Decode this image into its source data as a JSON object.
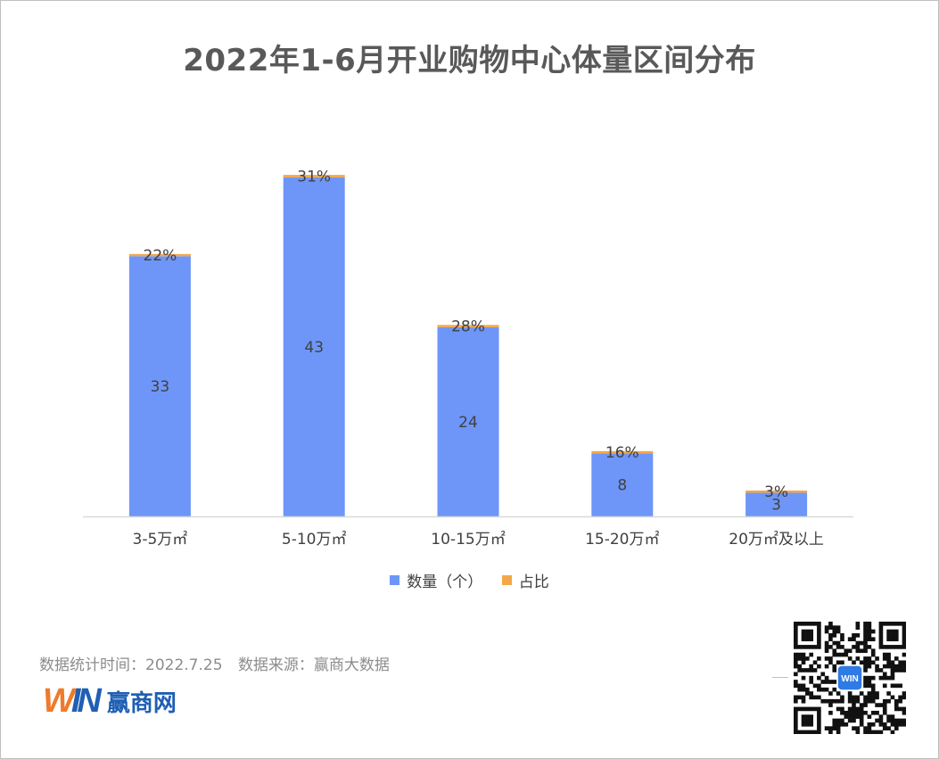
{
  "title": "2022年1-6月开业购物中心体量区间分布",
  "chart_data": {
    "type": "bar",
    "stacked": true,
    "categories": [
      "3-5万㎡",
      "5-10万㎡",
      "10-15万㎡",
      "15-20万㎡",
      "20万㎡及以上"
    ],
    "series": [
      {
        "name": "数量（个）",
        "values": [
          33,
          43,
          24,
          8,
          3
        ],
        "labels": [
          "33",
          "43",
          "24",
          "8",
          "3"
        ],
        "color": "#6e96f8"
      },
      {
        "name": "占比",
        "values": [
          0.22,
          0.31,
          0.28,
          0.16,
          0.03
        ],
        "labels": [
          "22%",
          "31%",
          "28%",
          "16%",
          "3%"
        ],
        "color": "#f5a747"
      }
    ],
    "ylim": [
      0,
      50
    ],
    "grid": false,
    "legend": "bottom"
  },
  "footer": {
    "stat_time": "数据统计时间：2022.7.25",
    "source": "数据来源：赢商大数据"
  },
  "logo": {
    "mark": "WIN",
    "text": "赢商网",
    "mark_colors": [
      "#f07a2a",
      "#1f5fb4"
    ]
  },
  "qr": {
    "icon": "qr-code-icon",
    "center_text": "WIN"
  }
}
